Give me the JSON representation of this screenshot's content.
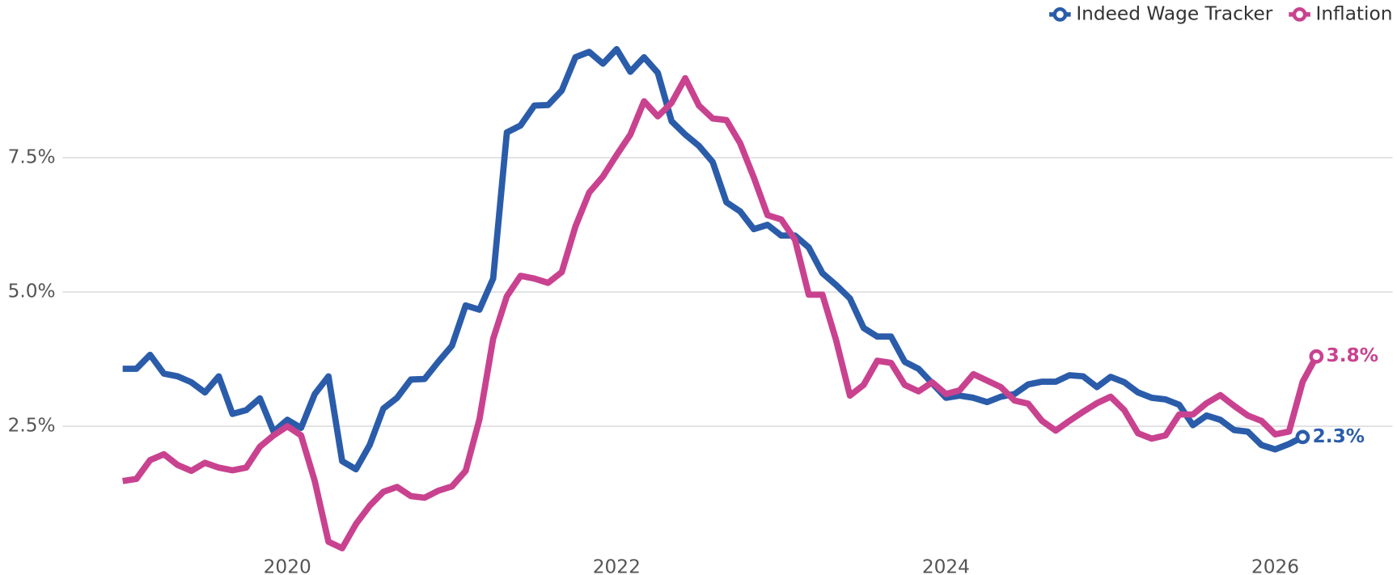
{
  "chart_data": {
    "type": "line",
    "categories": [
      null,
      null,
      null,
      null,
      null,
      null,
      null,
      null,
      null,
      null,
      null,
      null,
      "2020",
      null,
      null,
      null,
      null,
      null,
      null,
      null,
      null,
      null,
      null,
      null,
      null,
      null,
      null,
      null,
      null,
      null,
      null,
      null,
      null,
      null,
      null,
      null,
      "2022",
      null,
      null,
      null,
      null,
      null,
      null,
      null,
      null,
      null,
      null,
      null,
      null,
      null,
      null,
      null,
      null,
      null,
      null,
      null,
      null,
      null,
      null,
      null,
      "2024",
      null,
      null,
      null,
      null,
      null,
      null,
      null,
      null,
      null,
      null,
      null,
      null,
      null,
      null,
      null,
      null,
      null,
      null,
      null,
      null,
      null,
      null,
      null,
      "2026",
      null,
      null,
      null
    ],
    "series": [
      {
        "name": "Indeed Wage Tracker",
        "color": "#2a5caa",
        "values": [
          3.57,
          3.57,
          3.83,
          3.48,
          3.43,
          3.32,
          3.13,
          3.43,
          2.73,
          2.8,
          3.02,
          2.4,
          2.62,
          2.47,
          3.1,
          3.43,
          1.85,
          1.7,
          2.15,
          2.83,
          3.03,
          3.37,
          3.38,
          3.7,
          4.0,
          4.75,
          4.67,
          5.25,
          7.97,
          8.1,
          8.47,
          8.48,
          8.75,
          9.37,
          9.47,
          9.25,
          9.52,
          9.1,
          9.37,
          9.08,
          8.18,
          7.93,
          7.72,
          7.42,
          6.67,
          6.5,
          6.17,
          6.25,
          6.05,
          6.05,
          5.83,
          5.35,
          5.13,
          4.88,
          4.33,
          4.17,
          4.17,
          3.7,
          3.57,
          3.3,
          3.03,
          3.07,
          3.03,
          2.95,
          3.05,
          3.1,
          3.28,
          3.33,
          3.33,
          3.45,
          3.43,
          3.23,
          3.42,
          3.32,
          3.13,
          3.03,
          3.0,
          2.9,
          2.52,
          2.7,
          2.62,
          2.43,
          2.4,
          2.15,
          2.07,
          2.17,
          2.3,
          null
        ],
        "value_labels": [
          null,
          null,
          null,
          null,
          null,
          null,
          null,
          null,
          null,
          null,
          null,
          null,
          null,
          null,
          null,
          null,
          null,
          null,
          null,
          null,
          null,
          null,
          null,
          null,
          null,
          null,
          null,
          null,
          null,
          null,
          null,
          null,
          null,
          null,
          null,
          null,
          null,
          null,
          null,
          null,
          null,
          null,
          null,
          null,
          null,
          null,
          null,
          null,
          null,
          null,
          null,
          null,
          null,
          null,
          null,
          null,
          null,
          null,
          null,
          null,
          null,
          null,
          null,
          null,
          null,
          null,
          null,
          null,
          null,
          null,
          null,
          null,
          null,
          null,
          null,
          null,
          null,
          null,
          null,
          null,
          null,
          null,
          null,
          null,
          null,
          null,
          "2.3%",
          null
        ]
      },
      {
        "name": "Inflation",
        "color": "#c9428f",
        "values": [
          1.48,
          1.52,
          1.87,
          1.98,
          1.78,
          1.67,
          1.82,
          1.73,
          1.68,
          1.73,
          2.12,
          2.33,
          2.5,
          2.33,
          1.48,
          0.35,
          0.23,
          0.68,
          1.02,
          1.28,
          1.37,
          1.2,
          1.17,
          1.3,
          1.38,
          1.67,
          2.63,
          4.13,
          4.92,
          5.3,
          5.25,
          5.17,
          5.37,
          6.22,
          6.85,
          7.15,
          7.55,
          7.93,
          8.55,
          8.27,
          8.52,
          8.98,
          8.47,
          8.23,
          8.2,
          7.77,
          7.13,
          6.43,
          6.35,
          5.97,
          4.95,
          4.95,
          4.1,
          3.07,
          3.27,
          3.72,
          3.68,
          3.27,
          3.15,
          3.32,
          3.1,
          3.17,
          3.47,
          3.35,
          3.23,
          2.98,
          2.92,
          2.6,
          2.42,
          2.6,
          2.77,
          2.93,
          3.05,
          2.8,
          2.37,
          2.27,
          2.33,
          2.72,
          2.72,
          2.93,
          3.08,
          2.88,
          2.7,
          2.6,
          2.35,
          2.4,
          3.33,
          3.8
        ],
        "value_labels": [
          null,
          null,
          null,
          null,
          null,
          null,
          null,
          null,
          null,
          null,
          null,
          null,
          null,
          null,
          null,
          null,
          null,
          null,
          null,
          null,
          null,
          null,
          null,
          null,
          null,
          null,
          null,
          null,
          null,
          null,
          null,
          null,
          null,
          null,
          null,
          null,
          null,
          null,
          null,
          null,
          null,
          null,
          null,
          null,
          null,
          null,
          null,
          null,
          null,
          null,
          null,
          null,
          null,
          null,
          null,
          null,
          null,
          null,
          null,
          null,
          null,
          null,
          null,
          null,
          null,
          null,
          null,
          null,
          null,
          null,
          null,
          null,
          null,
          null,
          null,
          null,
          null,
          null,
          null,
          null,
          null,
          null,
          null,
          null,
          null,
          null,
          null,
          "3.8%"
        ]
      }
    ],
    "ylim": [
      0,
      10
    ],
    "yticks": [
      {
        "value": 2.5,
        "label": "2.5%"
      },
      {
        "value": 5.0,
        "label": "5.0%"
      },
      {
        "value": 7.5,
        "label": "7.5%"
      }
    ],
    "grid": true,
    "legend": "top-right"
  }
}
